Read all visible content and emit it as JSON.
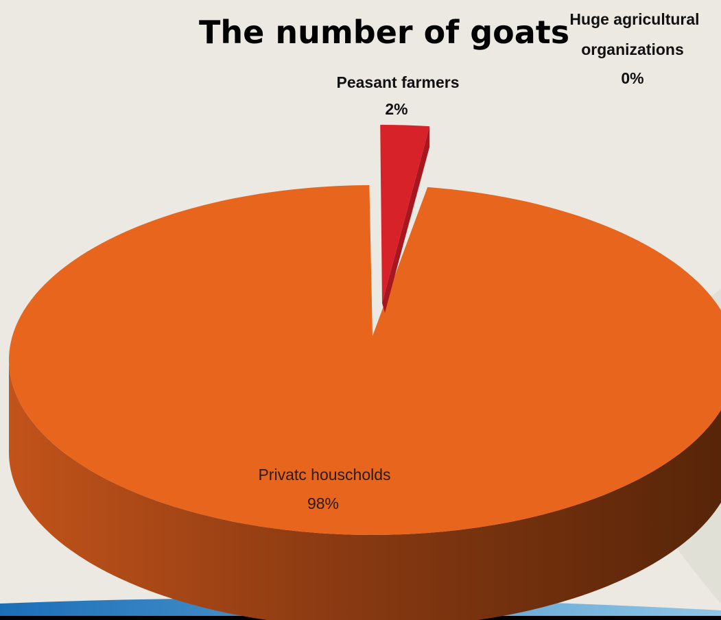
{
  "chart_data": {
    "type": "pie",
    "title": "The number of goats",
    "slices": [
      {
        "label": "Private households",
        "label_display": "Privatc houscholds",
        "value_label": "98%",
        "value": 98,
        "color": "#e8651e"
      },
      {
        "label": "Peasant farmers",
        "value_label": "2%",
        "value": 2,
        "color": "#d42028"
      },
      {
        "label": "Huge agricultural organizations",
        "label_lines": [
          "Huge agricultural",
          "organizations"
        ],
        "value_label": "0%",
        "value": 0,
        "color": "#1f4e9c"
      }
    ],
    "style": "3d-exploded"
  }
}
